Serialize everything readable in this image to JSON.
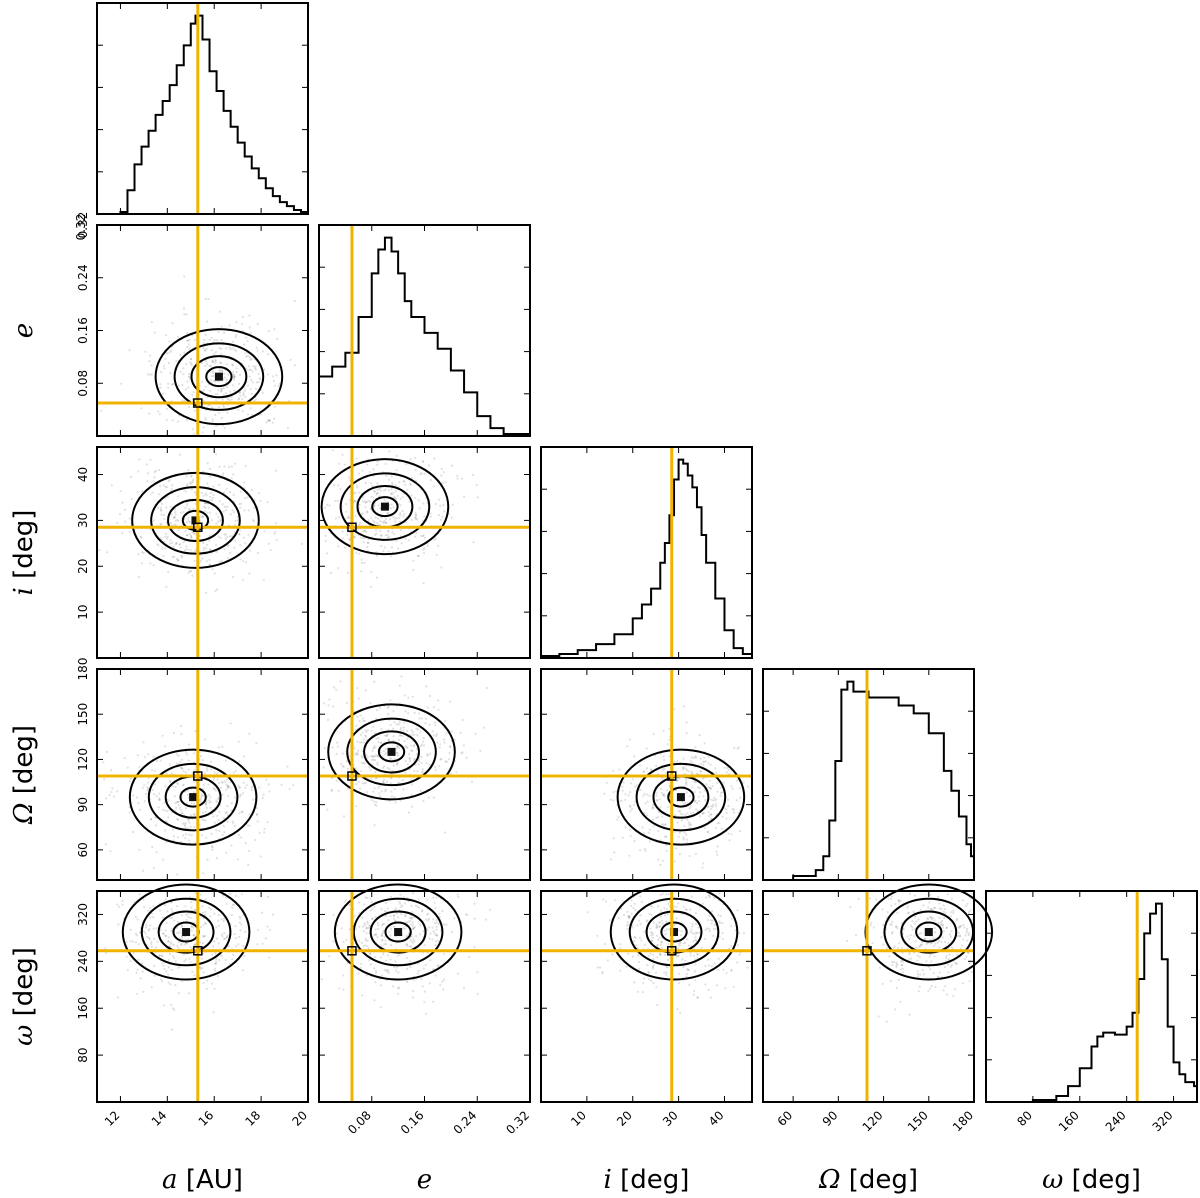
{
  "chart_data": {
    "type": "corner",
    "title": "",
    "parameters": [
      {
        "key": "a",
        "symbol": "a",
        "unit": "[AU]",
        "label": "a [AU]",
        "range": [
          11,
          20
        ],
        "ticks": [
          12,
          14,
          16,
          18,
          20
        ],
        "truth": 15.3
      },
      {
        "key": "e",
        "symbol": "e",
        "unit": "",
        "label": "e",
        "range": [
          0,
          0.32
        ],
        "ticks": [
          0.08,
          0.16,
          0.24,
          0.32
        ],
        "truth": 0.05
      },
      {
        "key": "i",
        "symbol": "i",
        "unit": "[deg]",
        "label": "i [deg]",
        "range": [
          0,
          46
        ],
        "ticks": [
          10,
          20,
          30,
          40
        ],
        "truth": 28.5
      },
      {
        "key": "Omega",
        "symbol": "Ω",
        "unit": "[deg]",
        "label": "Ω [deg]",
        "range": [
          40,
          180
        ],
        "ticks": [
          60,
          90,
          120,
          150,
          180
        ],
        "truth": 109
      },
      {
        "key": "omega",
        "symbol": "ω",
        "unit": "[deg]",
        "label": "ω [deg]",
        "range": [
          0,
          360
        ],
        "ticks": [
          80,
          160,
          240,
          320
        ],
        "truth": 258
      }
    ],
    "tick_labels": {
      "a": [
        "12",
        "14",
        "16",
        "18",
        "20"
      ],
      "e": [
        "0.08",
        "0.16",
        "0.24",
        "0.32"
      ],
      "i": [
        "10",
        "20",
        "30",
        "40"
      ],
      "Omega": [
        "60",
        "90",
        "120",
        "150",
        "180"
      ],
      "omega": [
        "80",
        "160",
        "240",
        "320"
      ]
    },
    "truth_color": "#f0b400",
    "histograms": {
      "a": {
        "x": [
          12,
          12.3,
          12.6,
          12.9,
          13.2,
          13.5,
          13.8,
          14.1,
          14.4,
          14.7,
          15.0,
          15.2,
          15.5,
          15.8,
          16.1,
          16.4,
          16.7,
          17.0,
          17.3,
          17.6,
          17.9,
          18.2,
          18.5,
          18.8,
          19.1,
          19.4,
          19.7
        ],
        "y": [
          0.01,
          0.12,
          0.25,
          0.34,
          0.42,
          0.5,
          0.57,
          0.65,
          0.75,
          0.85,
          0.96,
          1.0,
          0.88,
          0.72,
          0.62,
          0.52,
          0.44,
          0.36,
          0.29,
          0.23,
          0.18,
          0.13,
          0.09,
          0.06,
          0.04,
          0.02,
          0.01
        ]
      },
      "e": {
        "x": [
          0.0,
          0.02,
          0.04,
          0.06,
          0.08,
          0.09,
          0.1,
          0.11,
          0.12,
          0.13,
          0.14,
          0.16,
          0.18,
          0.2,
          0.22,
          0.24,
          0.26,
          0.28
        ],
        "y": [
          0.3,
          0.35,
          0.42,
          0.6,
          0.82,
          0.94,
          1.0,
          0.93,
          0.82,
          0.68,
          0.6,
          0.52,
          0.44,
          0.33,
          0.22,
          0.1,
          0.04,
          0.01
        ]
      },
      "i": {
        "x": [
          0,
          4,
          8,
          12,
          16,
          20,
          22,
          24,
          26,
          27,
          28,
          29,
          30,
          31,
          32,
          33,
          34,
          35,
          36,
          38,
          40,
          42,
          44
        ],
        "y": [
          0.01,
          0.02,
          0.04,
          0.07,
          0.12,
          0.2,
          0.27,
          0.35,
          0.48,
          0.58,
          0.72,
          0.9,
          1.0,
          0.98,
          0.92,
          0.86,
          0.76,
          0.62,
          0.48,
          0.3,
          0.14,
          0.05,
          0.02
        ]
      },
      "Omega": {
        "x": [
          40,
          60,
          75,
          80,
          84,
          88,
          92,
          96,
          100,
          110,
          120,
          130,
          140,
          150,
          160,
          165,
          170,
          175,
          178
        ],
        "y": [
          0.0,
          0.02,
          0.05,
          0.12,
          0.3,
          0.6,
          0.96,
          1.0,
          0.95,
          0.92,
          0.92,
          0.88,
          0.84,
          0.74,
          0.55,
          0.45,
          0.32,
          0.18,
          0.12
        ]
      },
      "omega": {
        "x": [
          0,
          80,
          120,
          140,
          160,
          180,
          190,
          200,
          220,
          240,
          250,
          260,
          270,
          280,
          290,
          300,
          310,
          320,
          330,
          340,
          355
        ],
        "y": [
          0.0,
          0.01,
          0.03,
          0.08,
          0.17,
          0.28,
          0.33,
          0.35,
          0.34,
          0.38,
          0.45,
          0.62,
          0.85,
          0.95,
          1.0,
          0.72,
          0.38,
          0.2,
          0.14,
          0.1,
          0.08
        ]
      }
    },
    "density_peaks": [
      {
        "x": "a",
        "y": "e",
        "peaks": [
          [
            16.2,
            0.09
          ]
        ]
      },
      {
        "x": "a",
        "y": "i",
        "peaks": [
          [
            15.2,
            30
          ]
        ]
      },
      {
        "x": "e",
        "y": "i",
        "peaks": [
          [
            0.1,
            33
          ]
        ]
      },
      {
        "x": "a",
        "y": "Omega",
        "peaks": [
          [
            15.1,
            95
          ]
        ]
      },
      {
        "x": "e",
        "y": "Omega",
        "peaks": [
          [
            0.11,
            125
          ]
        ]
      },
      {
        "x": "i",
        "y": "Omega",
        "peaks": [
          [
            30.5,
            95
          ]
        ]
      },
      {
        "x": "a",
        "y": "omega",
        "peaks": [
          [
            14.8,
            290
          ]
        ]
      },
      {
        "x": "e",
        "y": "omega",
        "peaks": [
          [
            0.12,
            290
          ]
        ]
      },
      {
        "x": "i",
        "y": "omega",
        "peaks": [
          [
            29,
            290
          ]
        ]
      },
      {
        "x": "Omega",
        "y": "omega",
        "peaks": [
          [
            150,
            290
          ]
        ]
      }
    ]
  }
}
